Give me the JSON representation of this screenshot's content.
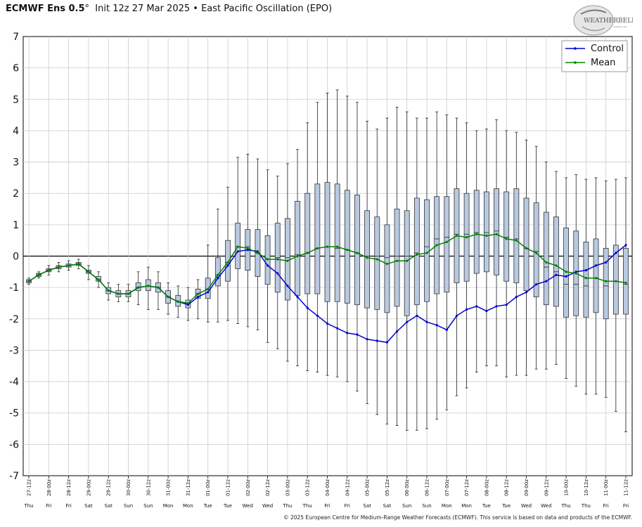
{
  "header": {
    "model": "ECMWF Ens 0.5",
    "degree": "°",
    "init": "Init 12z 27 Mar 2025",
    "bullet": "•",
    "index": "East Pacific Oscillation (EPO)"
  },
  "logo": {
    "text": "WEATHERBELL",
    "subtext": "Analytics LLC"
  },
  "credit": "© 2025 European Centre for Medium-Range Weather Forecasts (ECMWF). This service is based on data and products of the ECMWF.",
  "colors": {
    "control": "#0000cc",
    "mean": "#008000",
    "box_fill": "#b8c9e0",
    "box_edge": "#333333",
    "grid": "#cccccc"
  },
  "chart_data": {
    "type": "box",
    "ylim": [
      -7,
      7
    ],
    "yticks": [
      -7,
      -6,
      -5,
      -4,
      -3,
      -2,
      -1,
      0,
      1,
      2,
      3,
      4,
      5,
      6,
      7
    ],
    "grid": true,
    "legend_position": "top-right",
    "x_date_labels": [
      "27-12z",
      "28-00z",
      "28-12z",
      "29-00z",
      "29-12z",
      "30-00z",
      "30-12z",
      "31-00z",
      "31-12z",
      "01-00z",
      "01-12z",
      "02-00z",
      "02-12z",
      "03-00z",
      "03-12z",
      "04-00z",
      "04-12z",
      "05-00z",
      "05-12z",
      "06-00z",
      "06-12z",
      "07-00z",
      "07-12z",
      "08-00z",
      "08-12z",
      "09-00z",
      "09-12z",
      "10-00z",
      "10-12z",
      "11-00z",
      "11-12z"
    ],
    "x_day_labels": [
      "Thu",
      "Fri",
      "Fri",
      "Sat",
      "Sat",
      "Sun",
      "Sun",
      "Mon",
      "Mon",
      "Tue",
      "Tue",
      "Wed",
      "Wed",
      "Thu",
      "Thu",
      "Fri",
      "Fri",
      "Sat",
      "Sat",
      "Sun",
      "Sun",
      "Mon",
      "Mon",
      "Tue",
      "Tue",
      "Wed",
      "Wed",
      "Thu",
      "Thu",
      "Fri",
      "Fri"
    ],
    "series": [
      {
        "name": "Control",
        "values": [
          -0.8,
          -0.6,
          -0.45,
          -0.35,
          -0.3,
          -0.25,
          -0.5,
          -0.75,
          -1.1,
          -1.2,
          -1.2,
          -1.0,
          -0.95,
          -1.0,
          -1.3,
          -1.45,
          -1.55,
          -1.3,
          -1.15,
          -0.7,
          -0.3,
          0.15,
          0.2,
          0.15,
          -0.3,
          -0.55,
          -0.95,
          -1.3,
          -1.65,
          -1.9,
          -2.15,
          -2.3,
          -2.45,
          -2.5,
          -2.65,
          -2.7,
          -2.75,
          -2.4,
          -2.1,
          -1.9,
          -2.1,
          -2.2,
          -2.35,
          -1.9,
          -1.7,
          -1.6,
          -1.75,
          -1.6,
          -1.55,
          -1.3,
          -1.15,
          -0.9,
          -0.8,
          -0.6,
          -0.65,
          -0.5,
          -0.45,
          -0.3,
          -0.2,
          0.1,
          0.35
        ]
      },
      {
        "name": "Mean",
        "values": [
          -0.8,
          -0.6,
          -0.45,
          -0.35,
          -0.3,
          -0.25,
          -0.5,
          -0.75,
          -1.1,
          -1.2,
          -1.2,
          -1.0,
          -0.95,
          -1.0,
          -1.3,
          -1.45,
          -1.5,
          -1.2,
          -1.05,
          -0.6,
          -0.2,
          0.3,
          0.25,
          0.1,
          -0.1,
          -0.1,
          -0.15,
          0.0,
          0.1,
          0.25,
          0.3,
          0.3,
          0.2,
          0.1,
          -0.05,
          -0.1,
          -0.25,
          -0.15,
          -0.15,
          0.05,
          0.1,
          0.35,
          0.45,
          0.65,
          0.6,
          0.7,
          0.65,
          0.7,
          0.55,
          0.5,
          0.25,
          0.1,
          -0.2,
          -0.3,
          -0.5,
          -0.55,
          -0.7,
          -0.7,
          -0.8,
          -0.8,
          -0.85
        ]
      }
    ],
    "boxes": {
      "q1": [
        -0.85,
        -0.65,
        -0.5,
        -0.4,
        -0.35,
        -0.3,
        -0.55,
        -0.8,
        -1.2,
        -1.3,
        -1.3,
        -1.1,
        -1.1,
        -1.15,
        -1.5,
        -1.6,
        -1.65,
        -1.35,
        -1.35,
        -0.95,
        -0.8,
        -0.4,
        -0.45,
        -0.65,
        -0.9,
        -1.15,
        -1.4,
        -1.25,
        -1.2,
        -1.2,
        -1.45,
        -1.45,
        -1.5,
        -1.55,
        -1.65,
        -1.7,
        -1.8,
        -1.6,
        -1.9,
        -1.55,
        -1.45,
        -1.2,
        -1.15,
        -0.85,
        -0.8,
        -0.55,
        -0.5,
        -0.6,
        -0.8,
        -0.85,
        -1.1,
        -1.3,
        -1.55,
        -1.6,
        -1.95,
        -1.9,
        -1.95,
        -1.8,
        -2.0,
        -1.85,
        -1.85
      ],
      "q3": [
        -0.75,
        -0.55,
        -0.4,
        -0.3,
        -0.25,
        -0.2,
        -0.45,
        -0.65,
        -1.0,
        -1.1,
        -1.1,
        -0.85,
        -0.75,
        -0.85,
        -1.1,
        -1.25,
        -1.4,
        -1.05,
        -0.7,
        -0.05,
        0.5,
        1.05,
        0.85,
        0.85,
        0.65,
        1.05,
        1.2,
        1.75,
        2.0,
        2.3,
        2.35,
        2.3,
        2.1,
        1.95,
        1.45,
        1.25,
        1.0,
        1.5,
        1.45,
        1.85,
        1.8,
        1.9,
        1.9,
        2.15,
        2.0,
        2.1,
        2.05,
        2.15,
        2.05,
        2.15,
        1.85,
        1.7,
        1.4,
        1.25,
        0.9,
        0.8,
        0.45,
        0.55,
        0.25,
        0.35,
        0.25
      ],
      "median": [
        -0.8,
        -0.6,
        -0.45,
        -0.35,
        -0.3,
        -0.25,
        -0.5,
        -0.75,
        -1.1,
        -1.2,
        -1.2,
        -1.0,
        -0.95,
        -1.0,
        -1.3,
        -1.45,
        -1.5,
        -1.2,
        -1.05,
        -0.6,
        -0.2,
        0.3,
        0.3,
        0.1,
        -0.1,
        -0.05,
        -0.05,
        0.05,
        0.1,
        0.25,
        0.3,
        0.25,
        0.2,
        0.1,
        0.0,
        0.0,
        -0.05,
        0.0,
        0.0,
        0.1,
        0.3,
        0.55,
        0.6,
        0.7,
        0.7,
        0.75,
        0.75,
        0.8,
        0.6,
        0.55,
        0.25,
        0.15,
        -0.35,
        -0.5,
        -0.9,
        -0.9,
        -0.95,
        -0.7,
        -0.95,
        -0.8,
        -0.9
      ],
      "whisker_low": [
        -0.9,
        -0.7,
        -0.6,
        -0.5,
        -0.45,
        -0.4,
        -0.75,
        -1.0,
        -1.4,
        -1.45,
        -1.45,
        -1.55,
        -1.7,
        -1.7,
        -1.85,
        -1.95,
        -2.05,
        -2.0,
        -2.1,
        -2.1,
        -2.05,
        -2.15,
        -2.25,
        -2.35,
        -2.75,
        -2.95,
        -3.35,
        -3.5,
        -3.65,
        -3.7,
        -3.8,
        -3.85,
        -4.0,
        -4.3,
        -4.7,
        -5.05,
        -5.35,
        -5.4,
        -5.55,
        -5.55,
        -5.5,
        -5.2,
        -4.9,
        -4.45,
        -4.2,
        -3.7,
        -3.5,
        -3.5,
        -3.85,
        -3.8,
        -3.8,
        -3.6,
        -3.6,
        -3.45,
        -3.9,
        -4.15,
        -4.4,
        -4.4,
        -4.5,
        -4.95,
        -5.6
      ],
      "whisker_high": [
        -0.7,
        -0.5,
        -0.3,
        -0.2,
        -0.15,
        -0.1,
        -0.3,
        -0.5,
        -0.85,
        -0.9,
        -0.9,
        -0.5,
        -0.35,
        -0.5,
        -0.85,
        -0.95,
        -1.0,
        -0.75,
        0.35,
        1.5,
        2.2,
        3.15,
        3.25,
        3.1,
        2.75,
        2.55,
        2.95,
        3.4,
        4.25,
        4.9,
        5.2,
        5.3,
        5.1,
        4.9,
        4.3,
        4.05,
        4.4,
        4.75,
        4.6,
        4.4,
        4.4,
        4.6,
        4.5,
        4.4,
        4.25,
        4.0,
        4.05,
        4.35,
        4.0,
        3.95,
        3.7,
        3.5,
        3.0,
        2.7,
        2.5,
        2.6,
        2.45,
        2.5,
        2.4,
        2.45,
        2.5
      ]
    }
  }
}
